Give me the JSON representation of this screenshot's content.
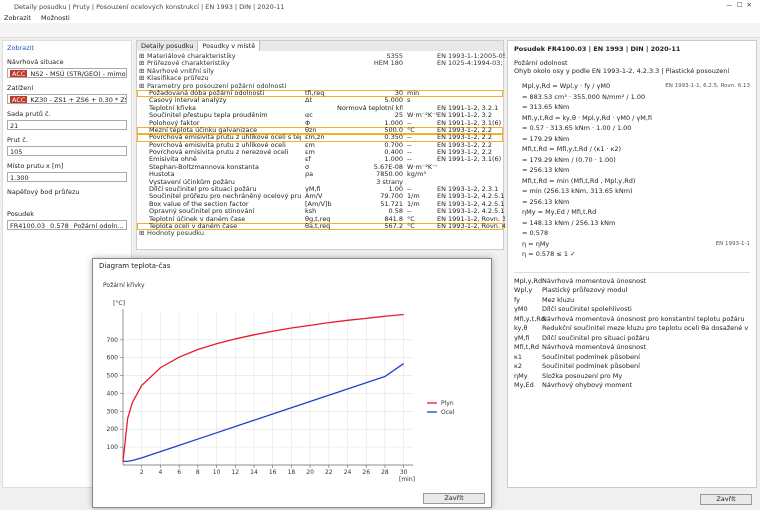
{
  "window": {
    "title": "Detaily posudku | Pruty | Posouzení ocelových konstrukcí | EN 1993 | DIN | 2020-11",
    "menu": [
      "Zobrazit",
      "Možnosti"
    ],
    "close": "Zavřít"
  },
  "left": {
    "heading": "Zobrazit",
    "fields": [
      {
        "label": "Návrhová situace",
        "tag": "ACC",
        "value": "NS2 - MSÚ (STR/GEO) - mimořá..."
      },
      {
        "label": "Zatížení",
        "tag": "ACC",
        "value": "KZ30 - ZS1 + ZS6 + 0.30 * ZS2"
      },
      {
        "label": "Sada prutů č.",
        "value": "21"
      },
      {
        "label": "Prut č.",
        "value": "105"
      },
      {
        "label": "Místo prutu x [m]",
        "value": "1.300"
      },
      {
        "label": "Napěťový bod průřezu"
      }
    ],
    "check": {
      "label": "Posudek",
      "id": "FR4100.03",
      "ratio": "0.578",
      "desc": "Požární odoln..."
    }
  },
  "middle": {
    "tabs": [
      "Detaily posudku",
      "Posudky v místě"
    ],
    "rows": [
      {
        "group": true,
        "label": "Materiálové charakteristiky",
        "value": "S355",
        "ref": "EN 1993-1-1:2005-05"
      },
      {
        "group": true,
        "label": "Průřezové charakteristiky",
        "value": "HEM 180",
        "ref": "EN 1025-4:1994-03; ..."
      },
      {
        "group": true,
        "label": "Návrhové vnitřní síly"
      },
      {
        "group": true,
        "label": "Klasifikace průřezu"
      },
      {
        "group": true,
        "label": "Parametry pro posouzení požární odolnosti"
      },
      {
        "label": "Požadovaná doba požární odolnosti",
        "symbol": "tfi,req",
        "value": "30",
        "unit": "min",
        "highlight": true
      },
      {
        "label": "Časový interval analýzy",
        "symbol": "Δt",
        "value": "5.000",
        "unit": "s"
      },
      {
        "label": "Teplotní křivka",
        "value": "Normová teplotní křivka",
        "ref": "EN 1991-1-2, 3.2.1"
      },
      {
        "label": "Součinitel přestupu tepla prouděním",
        "symbol": "αc",
        "value": "25",
        "unit": "W·m⁻²K⁻¹",
        "ref": "EN 1991-1-2, 3.2"
      },
      {
        "label": "Polohový faktor",
        "symbol": "Φ",
        "value": "1.000",
        "unit": "--",
        "ref": "EN 1991-1-2, 3.1(6)"
      },
      {
        "label": "Mezní teplota účinku galvanizace",
        "symbol": "θzn",
        "value": "500.0",
        "unit": "°C",
        "ref": "EN 1993-1-2, 2.2",
        "highlight": true
      },
      {
        "label": "Povrchová emisivita prutu z uhlíkové oceli s teplotou po...",
        "symbol": "εm,zn",
        "value": "0.350",
        "unit": "--",
        "ref": "EN 1993-1-2, 2.2",
        "highlight": true
      },
      {
        "label": "Povrchová emisivita prutu z uhlíkové oceli",
        "symbol": "εm",
        "value": "0.700",
        "unit": "--",
        "ref": "EN 1993-1-2, 2.2"
      },
      {
        "label": "Povrchová emisivita prutu z nerezové oceli",
        "symbol": "εm",
        "value": "0.400",
        "unit": "--",
        "ref": "EN 1993-1-2, 2.2"
      },
      {
        "label": "Emisivita ohně",
        "symbol": "εf",
        "value": "1.000",
        "unit": "--",
        "ref": "EN 1991-1-2, 3.1(6)"
      },
      {
        "label": "Stephan-Boltzmannova konstanta",
        "symbol": "σ",
        "value": "5.67E-08",
        "unit": "W·m⁻²K⁻⁴"
      },
      {
        "label": "Hustota",
        "symbol": "ρa",
        "value": "7850.00",
        "unit": "kg/m³"
      },
      {
        "label": "Vystavení účinkům požáru",
        "value": "3 strany"
      },
      {
        "label": "Dílčí součinitel pro situaci požáru",
        "symbol": "γM,fi",
        "value": "1.00",
        "unit": "--",
        "ref": "EN 1993-1-2, 2.3.1"
      },
      {
        "label": "Součinitel průřezu pro nechráněný ocelový prut",
        "symbol": "Am/V",
        "value": "79.700",
        "unit": "1/m",
        "ref": "EN 1993-1-2, 4.2.5.1(1)"
      },
      {
        "label": "Box value of the section factor",
        "symbol": "[Am/V]b",
        "value": "51.721",
        "unit": "1/m",
        "ref": "EN 1993-1-2, 4.2.5.1(1)"
      },
      {
        "label": "Opravný součinitel pro stínování",
        "symbol": "ksh",
        "value": "0.58",
        "unit": "--",
        "ref": "EN 1993-1-2, 4.2.5.1(2)"
      },
      {
        "label": "Teplotní účinek v daném čase",
        "symbol": "θg,t,req",
        "value": "841.8",
        "unit": "°C",
        "ref": "EN 1991-1-2, Rovn. 3.4"
      },
      {
        "label": "Teplota oceli v daném čase",
        "symbol": "θa,t,req",
        "value": "567.2",
        "unit": "°C",
        "ref": "EN 1993-1-2, Rovn. 4.25",
        "highlight": true
      },
      {
        "group": true,
        "label": "Hodnoty posudku"
      }
    ]
  },
  "right": {
    "title": "Posudek FR4100.03 | EN 1993 | DIN | 2020-11",
    "subtitle": "Požární odolnost",
    "desc": "Ohyb okolo osy y podle EN 1993-1-2, 4.2.3.3 | Plastické posouzení",
    "lines": [
      {
        "text": "Mpl,y,Rd = Wpl,y · fy / γM0",
        "ref": "EN 1993-1-1, 6.2.5, Rovn. 6.13"
      },
      {
        "text": "= 883.53 cm³ · 355.000 N/mm² / 1.00"
      },
      {
        "text": "= 313.65 kNm"
      },
      {
        "text": "Mfi,y,t,Rd = ky,θ · Mpl,y,Rd · γM0 / γM,fi"
      },
      {
        "text": "= 0.57 · 313.65 kNm · 1.00 / 1.00"
      },
      {
        "text": "= 179.29 kNm"
      },
      {
        "text": "Mfi,t,Rd = Mfi,y,t,Rd / (κ1 · κ2)"
      },
      {
        "text": "= 179.29 kNm / (0.70 · 1.00)"
      },
      {
        "text": "= 256.13 kNm"
      },
      {
        "text": "Mfi,t,Rd = min (Mfi,t,Rd , Mpl,y,Rd)"
      },
      {
        "text": "= min (256.13 kNm, 313.65 kNm)"
      },
      {
        "text": "= 256.13 kNm"
      },
      {
        "text": "ηMy = My,Ed / Mfi,t,Rd"
      },
      {
        "text": "= 148.13 kNm / 256.13 kNm"
      },
      {
        "text": "= 0.578"
      },
      {
        "text": "η = ηMy",
        "ref": "EN 1993-1-1"
      },
      {
        "text": "η = 0.578 ≤ 1 ✓"
      }
    ],
    "symbols": [
      [
        "Mpl,y,Rd",
        "Návrhová momentová únosnost"
      ],
      [
        "Wpl,y",
        "Plastický průřezový modul"
      ],
      [
        "fy",
        "Mez kluzu"
      ],
      [
        "γM0",
        "Dílčí součinitel spolehlivosti"
      ],
      [
        "Mfi,y,t,Rd",
        "Návrhová momentová únosnost pro konstantní teplotu požáru"
      ],
      [
        "ky,θ",
        "Redukční součinitel meze kluzu pro teplotu oceli θa dosažené v čase t"
      ],
      [
        "γM,fi",
        "Dílčí součinitel pro situaci požáru"
      ],
      [
        "Mfi,t,Rd",
        "Návrhová momentová únosnost"
      ],
      [
        "κ1",
        "Součinitel podmínek působení"
      ],
      [
        "κ2",
        "Součinitel podmínek působení"
      ],
      [
        "ηMy",
        "Složka posouzení pro My"
      ],
      [
        "My,Ed",
        "Návrhový ohybový moment"
      ]
    ]
  },
  "dialog": {
    "title": "Diagram teplota-čas",
    "close": "Zavřít"
  },
  "chart_data": {
    "type": "line",
    "title": "Požární křivky",
    "y_label": "[°C]",
    "x_label": "[min]",
    "x": [
      0,
      0.5,
      1,
      2,
      4,
      6,
      8,
      10,
      12,
      14,
      16,
      18,
      20,
      22,
      24,
      26,
      28,
      30
    ],
    "series": [
      {
        "name": "Plyn",
        "color": "#e8192c",
        "values": [
          20,
          261,
          349,
          445,
          544,
          603,
          646,
          678,
          705,
          728,
          748,
          766,
          781,
          796,
          809,
          820,
          832,
          841.8
        ]
      },
      {
        "name": "Ocel",
        "color": "#1f3fd0",
        "values": [
          20,
          21,
          25,
          40,
          75,
          110,
          145,
          180,
          215,
          250,
          285,
          320,
          355,
          390,
          425,
          460,
          495,
          567.2
        ]
      }
    ],
    "xlim": [
      0,
      31
    ],
    "ylim": [
      0,
      850
    ],
    "xticks": [
      2,
      4,
      6,
      8,
      10,
      12,
      14,
      16,
      18,
      20,
      22,
      24,
      26,
      28,
      30
    ],
    "yticks": [
      100,
      200,
      300,
      400,
      500,
      600,
      700
    ],
    "grid": true,
    "legend": "right"
  }
}
